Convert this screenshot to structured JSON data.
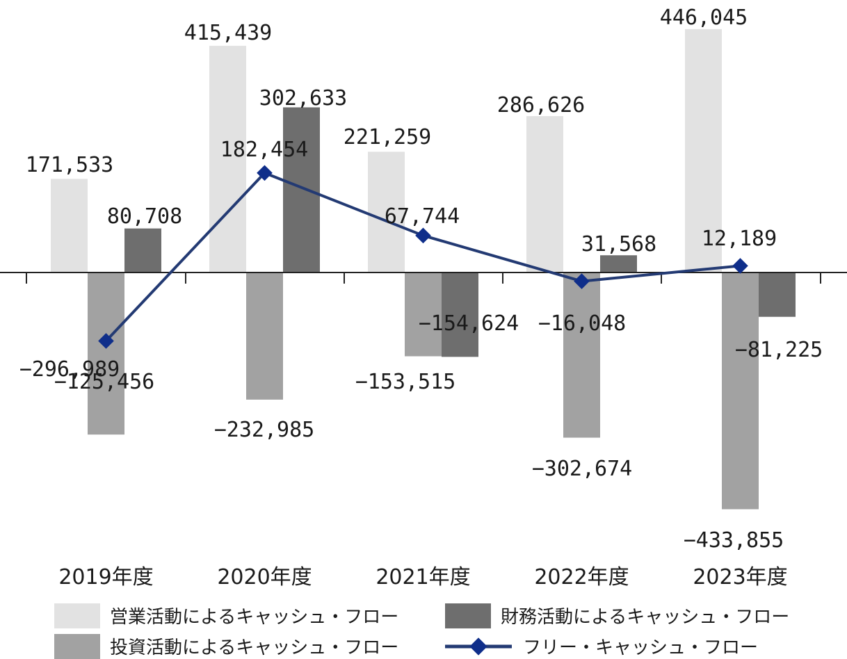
{
  "chart_data": {
    "type": "bar",
    "categories": [
      "2019年度",
      "2020年度",
      "2021年度",
      "2022年度",
      "2023年度"
    ],
    "series": [
      {
        "name": "営業活動によるキャッシュ・フロー",
        "kind": "bar",
        "color": "#e2e2e2",
        "values": [
          171533,
          415439,
          221259,
          286626,
          446045
        ],
        "labels": [
          "171,533",
          "415,439",
          "221,259",
          "286,626",
          "446,045"
        ]
      },
      {
        "name": "投資活動によるキャッシュ・フロー",
        "kind": "bar",
        "color": "#a2a2a2",
        "values": [
          -296989,
          -232985,
          -153515,
          -302674,
          -433855
        ],
        "labels": [
          "−296,989",
          "−232,985",
          "−153,515",
          "−302,674",
          "−433,855"
        ]
      },
      {
        "name": "財務活動によるキャッシュ・フロー",
        "kind": "bar",
        "color": "#6e6e6e",
        "values": [
          80708,
          302633,
          -154624,
          31568,
          -81225
        ],
        "labels": [
          "80,708",
          "302,633",
          "−154,624",
          "31,568",
          "−81,225"
        ]
      },
      {
        "name": "フリー・キャッシュ・フロー",
        "kind": "line",
        "color": "#233a73",
        "marker_color": "#0f2e8a",
        "values": [
          -125456,
          182454,
          67744,
          -16048,
          12189
        ],
        "labels": [
          "−125,456",
          "182,454",
          "67,744",
          "−16,048",
          "12,189"
        ]
      }
    ],
    "ylim": [
      -440000,
      480000
    ],
    "legend": "bottom",
    "grid": false
  }
}
